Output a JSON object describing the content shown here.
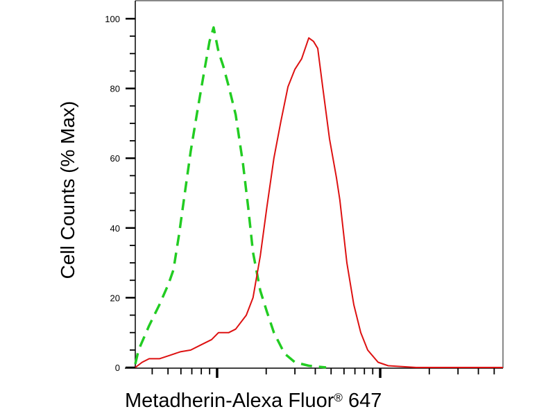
{
  "chart_data": {
    "type": "line",
    "title": "",
    "xlabel": "Metadherin-Alexa Fluor",
    "xlabel_mark": "®",
    "xlabel_suffix": "647",
    "ylabel": "Cell Counts (% Max)",
    "xscale": "log",
    "xlim": [
      3.15,
      566
    ],
    "ylim": [
      0,
      100
    ],
    "yticks": [
      0,
      20,
      40,
      60,
      80,
      100
    ],
    "xtick_labels_shown": false,
    "grid": false,
    "legend": "none",
    "series": [
      {
        "style": "dashed",
        "color": "#22cc22",
        "x": [
          3.15,
          3.3,
          3.83,
          4.43,
          5.04,
          5.4,
          5.84,
          6.25,
          6.89,
          7.6,
          8.38,
          8.98,
          9.52,
          10.2,
          10.9,
          11.8,
          13.0,
          14.4,
          15.5,
          16.6,
          18.4,
          20.2,
          22.3,
          25.9,
          30.0,
          36.5,
          46.6
        ],
        "y": [
          1,
          5,
          12,
          18,
          24,
          28,
          38,
          48,
          62,
          74,
          85.5,
          93.5,
          97.5,
          90.5,
          86.5,
          80.5,
          72.5,
          58.5,
          46,
          33,
          22,
          16,
          10,
          4,
          1.5,
          0.5,
          0
        ]
      },
      {
        "style": "solid",
        "color": "#dd1111",
        "x": [
          3.15,
          3.47,
          3.83,
          4.43,
          5.14,
          5.95,
          6.89,
          7.98,
          9.25,
          10.2,
          11.8,
          13.0,
          15.1,
          16.6,
          18.4,
          20.2,
          22.3,
          24.6,
          27.2,
          30.0,
          33.0,
          36.5,
          39.0,
          41.4,
          44.4,
          48.9,
          53.9,
          56.6,
          62.5,
          68.9,
          76.0,
          83.8,
          97.1,
          112,
          166,
          566
        ],
        "y": [
          0,
          1.5,
          2.5,
          2.5,
          3.5,
          4.5,
          5,
          6.5,
          8,
          10,
          10,
          11,
          15,
          20,
          32,
          46,
          60,
          70.5,
          80.5,
          85.5,
          88.5,
          94.5,
          93.5,
          91.5,
          80.5,
          65.5,
          54.5,
          48,
          30,
          18,
          10,
          5,
          1.5,
          0.5,
          0,
          0
        ]
      }
    ]
  }
}
